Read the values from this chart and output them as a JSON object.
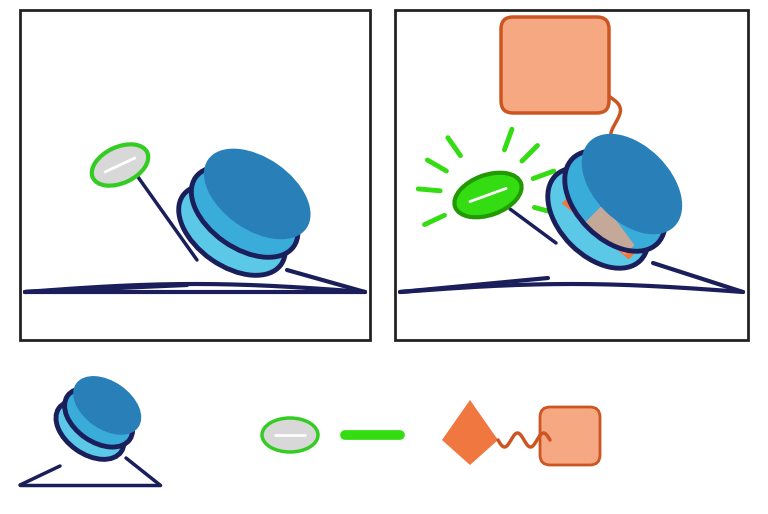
{
  "bg_color": "#FFFFFF",
  "panel_border": "#222222",
  "cyan_top": "#5BC8E8",
  "cyan_mid": "#3AACDA",
  "cyan_bot": "#2980B9",
  "cyan_shade": "#1A6090",
  "navy": "#1A1F5C",
  "green_bright": "#33DD11",
  "green_dark": "#229900",
  "green_pill": "#33DD11",
  "gray_pill_face": "#D8D8D8",
  "gray_pill_edge": "#33CC22",
  "white": "#FFFFFF",
  "orange_face": "#F07840",
  "orange_light": "#F5A882",
  "orange_edge": "#CC5522",
  "orange_wavy": "#CC5522"
}
